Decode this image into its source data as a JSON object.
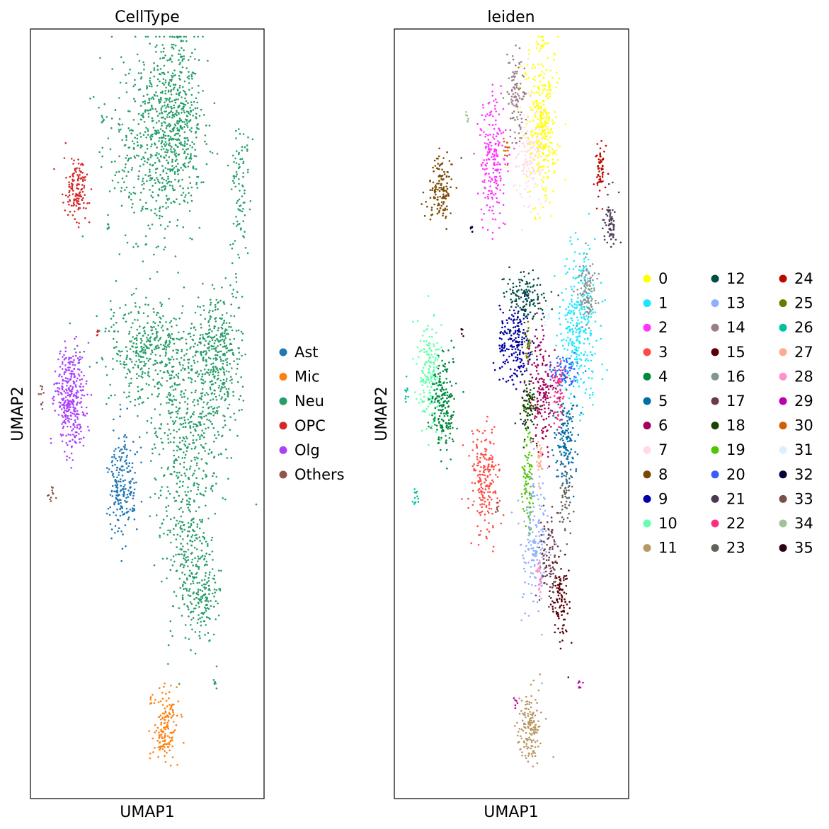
{
  "chart_data": [
    {
      "type": "scatter",
      "title": "CellType",
      "xlabel": "UMAP1",
      "ylabel": "UMAP2",
      "grid": false,
      "legend_position": "right",
      "legend_columns": 1,
      "categories": [
        {
          "name": "Ast",
          "color": "#1f77b4"
        },
        {
          "name": "Mic",
          "color": "#ff7f0e"
        },
        {
          "name": "Neu",
          "color": "#279e68"
        },
        {
          "name": "OPC",
          "color": "#d62728"
        },
        {
          "name": "Olg",
          "color": "#aa40fc"
        },
        {
          "name": "Others",
          "color": "#8c564b"
        }
      ],
      "clusters": [
        {
          "cat": "Neu",
          "x": 0.52,
          "y": 0.14,
          "sx": 0.09,
          "sy": 0.07,
          "n": 520
        },
        {
          "cat": "Neu",
          "x": 0.64,
          "y": 0.12,
          "sx": 0.05,
          "sy": 0.06,
          "n": 380
        },
        {
          "cat": "Neu",
          "x": 0.5,
          "y": 0.42,
          "sx": 0.1,
          "sy": 0.035,
          "n": 420
        },
        {
          "cat": "Neu",
          "x": 0.8,
          "y": 0.42,
          "sx": 0.05,
          "sy": 0.04,
          "n": 360
        },
        {
          "cat": "Neu",
          "x": 0.68,
          "y": 0.52,
          "sx": 0.09,
          "sy": 0.06,
          "n": 420
        },
        {
          "cat": "Neu",
          "x": 0.68,
          "y": 0.68,
          "sx": 0.06,
          "sy": 0.055,
          "n": 260
        },
        {
          "cat": "Neu",
          "x": 0.73,
          "y": 0.73,
          "sx": 0.04,
          "sy": 0.03,
          "n": 120
        },
        {
          "cat": "Neu",
          "x": 0.9,
          "y": 0.21,
          "sx": 0.02,
          "sy": 0.05,
          "n": 90
        },
        {
          "cat": "Neu",
          "x": 0.31,
          "y": 0.115,
          "sx": 0.005,
          "sy": 0.004,
          "n": 6
        },
        {
          "cat": "Neu",
          "x": 0.33,
          "y": 0.259,
          "sx": 0.005,
          "sy": 0.003,
          "n": 6
        },
        {
          "cat": "Neu",
          "x": 0.79,
          "y": 0.85,
          "sx": 0.005,
          "sy": 0.004,
          "n": 7
        },
        {
          "cat": "OPC",
          "x": 0.2,
          "y": 0.21,
          "sx": 0.025,
          "sy": 0.022,
          "n": 140
        },
        {
          "cat": "OPC",
          "x": 0.29,
          "y": 0.394,
          "sx": 0.004,
          "sy": 0.003,
          "n": 5
        },
        {
          "cat": "Olg",
          "x": 0.17,
          "y": 0.48,
          "sx": 0.035,
          "sy": 0.035,
          "n": 340
        },
        {
          "cat": "Ast",
          "x": 0.39,
          "y": 0.59,
          "sx": 0.03,
          "sy": 0.035,
          "n": 210
        },
        {
          "cat": "Ast",
          "x": 0.44,
          "y": 0.625,
          "sx": 0.004,
          "sy": 0.004,
          "n": 5
        },
        {
          "cat": "Mic",
          "x": 0.58,
          "y": 0.91,
          "sx": 0.025,
          "sy": 0.022,
          "n": 150
        },
        {
          "cat": "Mic",
          "x": 0.52,
          "y": 0.872,
          "sx": 0.005,
          "sy": 0.004,
          "n": 6
        },
        {
          "cat": "Others",
          "x": 0.05,
          "y": 0.475,
          "sx": 0.006,
          "sy": 0.008,
          "n": 10
        },
        {
          "cat": "Others",
          "x": 0.09,
          "y": 0.605,
          "sx": 0.008,
          "sy": 0.006,
          "n": 12
        }
      ]
    },
    {
      "type": "scatter",
      "title": "leiden",
      "xlabel": "UMAP1",
      "ylabel": "UMAP2",
      "grid": false,
      "legend_position": "right",
      "legend_columns": 3,
      "categories": [
        {
          "name": "0",
          "color": "#ffff00"
        },
        {
          "name": "1",
          "color": "#1ce6ff"
        },
        {
          "name": "2",
          "color": "#ff34ff"
        },
        {
          "name": "3",
          "color": "#ff4a46"
        },
        {
          "name": "4",
          "color": "#008941"
        },
        {
          "name": "5",
          "color": "#006fa6"
        },
        {
          "name": "6",
          "color": "#a30059"
        },
        {
          "name": "7",
          "color": "#ffdbe5"
        },
        {
          "name": "8",
          "color": "#7a4900"
        },
        {
          "name": "9",
          "color": "#0000a6"
        },
        {
          "name": "10",
          "color": "#63ffac"
        },
        {
          "name": "11",
          "color": "#b79762"
        },
        {
          "name": "12",
          "color": "#004d43"
        },
        {
          "name": "13",
          "color": "#8fb0ff"
        },
        {
          "name": "14",
          "color": "#997d87"
        },
        {
          "name": "15",
          "color": "#5a0007"
        },
        {
          "name": "16",
          "color": "#809693"
        },
        {
          "name": "17",
          "color": "#6a3a4c"
        },
        {
          "name": "18",
          "color": "#1b4400"
        },
        {
          "name": "19",
          "color": "#4fc601"
        },
        {
          "name": "20",
          "color": "#3b5dff"
        },
        {
          "name": "21",
          "color": "#4a3b53"
        },
        {
          "name": "22",
          "color": "#ff2f80"
        },
        {
          "name": "23",
          "color": "#61615a"
        },
        {
          "name": "24",
          "color": "#ba0900"
        },
        {
          "name": "25",
          "color": "#6b7900"
        },
        {
          "name": "26",
          "color": "#00c2a0"
        },
        {
          "name": "27",
          "color": "#ffaa92"
        },
        {
          "name": "28",
          "color": "#ff90c9"
        },
        {
          "name": "29",
          "color": "#b903aa"
        },
        {
          "name": "30",
          "color": "#d16100"
        },
        {
          "name": "31",
          "color": "#ddefff"
        },
        {
          "name": "32",
          "color": "#000035"
        },
        {
          "name": "33",
          "color": "#7b4f4b"
        },
        {
          "name": "34",
          "color": "#a1c299"
        },
        {
          "name": "35",
          "color": "#300018"
        }
      ],
      "clusters": [
        {
          "cat": "0",
          "x": 0.63,
          "y": 0.12,
          "sx": 0.035,
          "sy": 0.055,
          "n": 330
        },
        {
          "cat": "14",
          "x": 0.52,
          "y": 0.08,
          "sx": 0.02,
          "sy": 0.03,
          "n": 110
        },
        {
          "cat": "2",
          "x": 0.42,
          "y": 0.17,
          "sx": 0.03,
          "sy": 0.045,
          "n": 210
        },
        {
          "cat": "7",
          "x": 0.58,
          "y": 0.17,
          "sx": 0.03,
          "sy": 0.035,
          "n": 150
        },
        {
          "cat": "30",
          "x": 0.48,
          "y": 0.157,
          "sx": 0.006,
          "sy": 0.008,
          "n": 14
        },
        {
          "cat": "34",
          "x": 0.31,
          "y": 0.115,
          "sx": 0.004,
          "sy": 0.004,
          "n": 6
        },
        {
          "cat": "8",
          "x": 0.2,
          "y": 0.21,
          "sx": 0.025,
          "sy": 0.022,
          "n": 140
        },
        {
          "cat": "32",
          "x": 0.33,
          "y": 0.259,
          "sx": 0.004,
          "sy": 0.003,
          "n": 6
        },
        {
          "cat": "24",
          "x": 0.88,
          "y": 0.185,
          "sx": 0.012,
          "sy": 0.02,
          "n": 60
        },
        {
          "cat": "21",
          "x": 0.92,
          "y": 0.25,
          "sx": 0.014,
          "sy": 0.022,
          "n": 60
        },
        {
          "cat": "12",
          "x": 0.55,
          "y": 0.35,
          "sx": 0.04,
          "sy": 0.018,
          "n": 140
        },
        {
          "cat": "9",
          "x": 0.52,
          "y": 0.41,
          "sx": 0.035,
          "sy": 0.025,
          "n": 210
        },
        {
          "cat": "25",
          "x": 0.57,
          "y": 0.41,
          "sx": 0.01,
          "sy": 0.01,
          "n": 30
        },
        {
          "cat": "31",
          "x": 0.65,
          "y": 0.375,
          "sx": 0.008,
          "sy": 0.008,
          "n": 10
        },
        {
          "cat": "1",
          "x": 0.79,
          "y": 0.39,
          "sx": 0.04,
          "sy": 0.05,
          "n": 310
        },
        {
          "cat": "16",
          "x": 0.82,
          "y": 0.34,
          "sx": 0.02,
          "sy": 0.022,
          "n": 110
        },
        {
          "cat": "20",
          "x": 0.72,
          "y": 0.445,
          "sx": 0.03,
          "sy": 0.012,
          "n": 80
        },
        {
          "cat": "6",
          "x": 0.63,
          "y": 0.47,
          "sx": 0.025,
          "sy": 0.04,
          "n": 170
        },
        {
          "cat": "22",
          "x": 0.7,
          "y": 0.475,
          "sx": 0.015,
          "sy": 0.025,
          "n": 70
        },
        {
          "cat": "18",
          "x": 0.57,
          "y": 0.49,
          "sx": 0.018,
          "sy": 0.02,
          "n": 90
        },
        {
          "cat": "5",
          "x": 0.73,
          "y": 0.53,
          "sx": 0.025,
          "sy": 0.035,
          "n": 160
        },
        {
          "cat": "19",
          "x": 0.57,
          "y": 0.58,
          "sx": 0.012,
          "sy": 0.04,
          "n": 90
        },
        {
          "cat": "27",
          "x": 0.62,
          "y": 0.56,
          "sx": 0.006,
          "sy": 0.015,
          "n": 30
        },
        {
          "cat": "23",
          "x": 0.73,
          "y": 0.61,
          "sx": 0.015,
          "sy": 0.025,
          "n": 50
        },
        {
          "cat": "13",
          "x": 0.6,
          "y": 0.67,
          "sx": 0.03,
          "sy": 0.045,
          "n": 170
        },
        {
          "cat": "17",
          "x": 0.66,
          "y": 0.685,
          "sx": 0.018,
          "sy": 0.025,
          "n": 90
        },
        {
          "cat": "28",
          "x": 0.62,
          "y": 0.71,
          "sx": 0.006,
          "sy": 0.012,
          "n": 25
        },
        {
          "cat": "15",
          "x": 0.71,
          "y": 0.745,
          "sx": 0.018,
          "sy": 0.025,
          "n": 110
        },
        {
          "cat": "10",
          "x": 0.15,
          "y": 0.45,
          "sx": 0.025,
          "sy": 0.035,
          "n": 190
        },
        {
          "cat": "4",
          "x": 0.21,
          "y": 0.49,
          "sx": 0.025,
          "sy": 0.03,
          "n": 200
        },
        {
          "cat": "35",
          "x": 0.29,
          "y": 0.394,
          "sx": 0.004,
          "sy": 0.003,
          "n": 5
        },
        {
          "cat": "26",
          "x": 0.05,
          "y": 0.475,
          "sx": 0.005,
          "sy": 0.008,
          "n": 10
        },
        {
          "cat": "26",
          "x": 0.09,
          "y": 0.605,
          "sx": 0.008,
          "sy": 0.006,
          "n": 12
        },
        {
          "cat": "3",
          "x": 0.39,
          "y": 0.59,
          "sx": 0.03,
          "sy": 0.035,
          "n": 210
        },
        {
          "cat": "33",
          "x": 0.44,
          "y": 0.625,
          "sx": 0.004,
          "sy": 0.004,
          "n": 5
        },
        {
          "cat": "29",
          "x": 0.79,
          "y": 0.85,
          "sx": 0.005,
          "sy": 0.004,
          "n": 7
        },
        {
          "cat": "29",
          "x": 0.52,
          "y": 0.872,
          "sx": 0.004,
          "sy": 0.005,
          "n": 6
        },
        {
          "cat": "11",
          "x": 0.58,
          "y": 0.91,
          "sx": 0.025,
          "sy": 0.022,
          "n": 150
        }
      ]
    }
  ]
}
